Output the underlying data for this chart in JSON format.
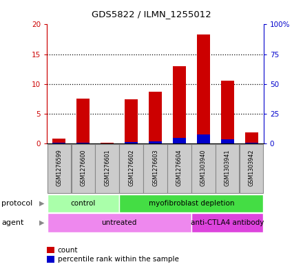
{
  "title": "GDS5822 / ILMN_1255012",
  "samples": [
    "GSM1276599",
    "GSM1276600",
    "GSM1276601",
    "GSM1276602",
    "GSM1276603",
    "GSM1276604",
    "GSM1303940",
    "GSM1303941",
    "GSM1303942"
  ],
  "counts": [
    0.8,
    7.6,
    0.1,
    7.4,
    8.7,
    13.0,
    18.3,
    10.6,
    1.9
  ],
  "percentile_ranks": [
    1.0,
    0.5,
    0.2,
    1.2,
    2.0,
    4.6,
    7.8,
    3.8,
    0.7
  ],
  "ylim_left": [
    0,
    20
  ],
  "ylim_right": [
    0,
    100
  ],
  "yticks_left": [
    0,
    5,
    10,
    15,
    20
  ],
  "ytick_labels_left": [
    "0",
    "5",
    "10",
    "15",
    "20"
  ],
  "yticks_right": [
    0,
    25,
    50,
    75,
    100
  ],
  "ytick_labels_right": [
    "0",
    "25",
    "50",
    "75",
    "100%"
  ],
  "bar_color": "#cc0000",
  "percentile_color": "#0000cc",
  "bar_width": 0.55,
  "protocol_groups": [
    {
      "label": "control",
      "start": 0,
      "end": 3,
      "color": "#aaffaa"
    },
    {
      "label": "myofibroblast depletion",
      "start": 3,
      "end": 9,
      "color": "#44dd44"
    }
  ],
  "agent_groups": [
    {
      "label": "untreated",
      "start": 0,
      "end": 6,
      "color": "#ee88ee"
    },
    {
      "label": "anti-CTLA4 antibody",
      "start": 6,
      "end": 9,
      "color": "#dd44dd"
    }
  ],
  "legend_count_label": "count",
  "legend_percentile_label": "percentile rank within the sample",
  "protocol_label": "protocol",
  "agent_label": "agent",
  "tick_color_left": "#cc0000",
  "tick_color_right": "#0000cc",
  "sample_box_color": "#cccccc",
  "sample_box_edge": "#888888"
}
